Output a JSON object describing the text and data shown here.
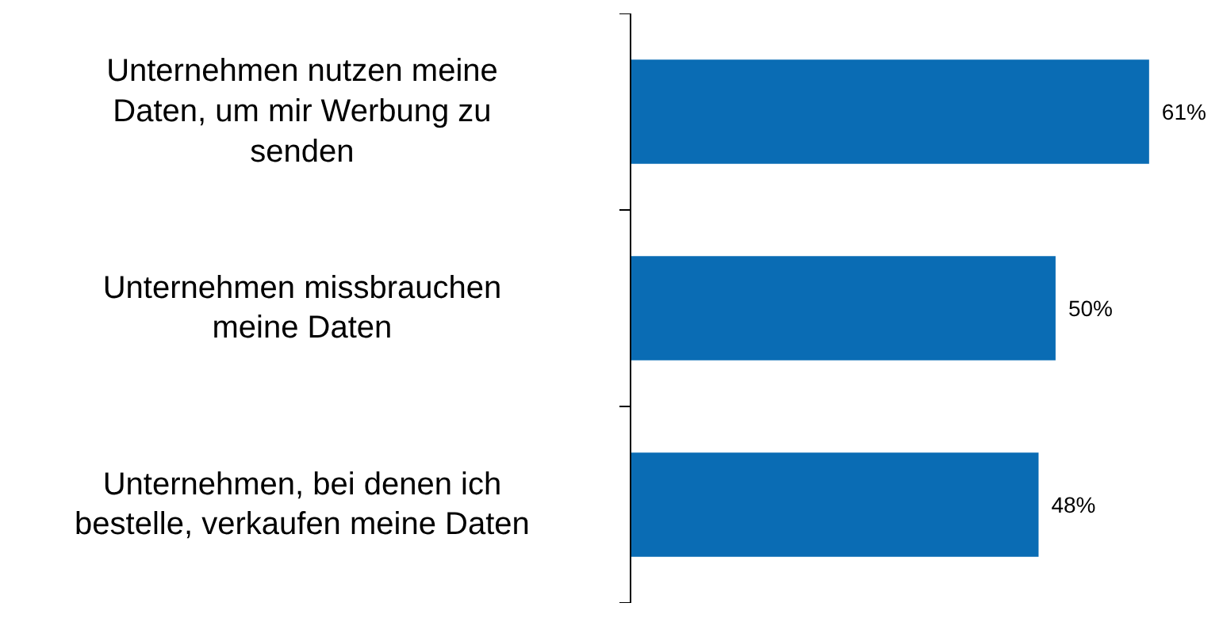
{
  "chart_data": {
    "type": "bar",
    "orientation": "horizontal",
    "categories": [
      "Unternehmen nutzen meine\nDaten, um mir Werbung zu\nsenden",
      "Unternehmen missbrauchen\nmeine Daten",
      "Unternehmen, bei denen ich\nbestelle, verkaufen meine Daten"
    ],
    "values": [
      61,
      50,
      48
    ],
    "value_labels": [
      "61%",
      "50%",
      "48%"
    ],
    "color": "#0a6cb4",
    "grid": false
  }
}
